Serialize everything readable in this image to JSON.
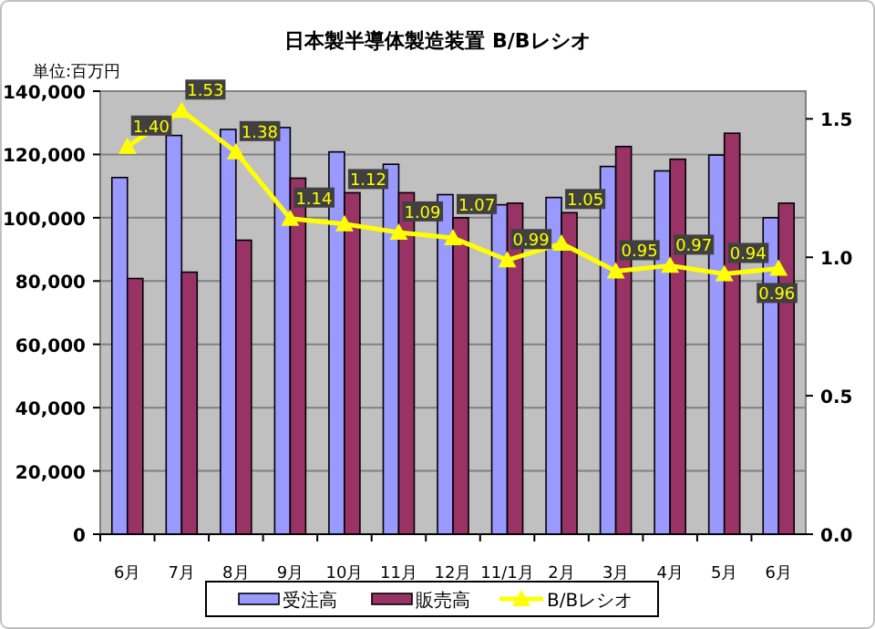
{
  "chart_data": {
    "type": "bar",
    "title": "日本製半導体製造装置 B/Bレシオ",
    "ylabel": "単位:百万円",
    "categories": [
      "6月",
      "7月",
      "8月",
      "9月",
      "10月",
      "11月",
      "12月",
      "11/1月",
      "2月",
      "3月",
      "4月",
      "5月",
      "6月"
    ],
    "series": [
      {
        "name": "受注高",
        "color": "#9999ff",
        "values": [
          112700,
          126000,
          127900,
          128500,
          120800,
          116900,
          107300,
          104100,
          106400,
          116200,
          114800,
          119800,
          100000
        ]
      },
      {
        "name": "販売高",
        "color": "#993366",
        "values": [
          80800,
          82800,
          92900,
          112500,
          107900,
          107900,
          100000,
          104600,
          101600,
          122500,
          118500,
          126700,
          104600
        ]
      },
      {
        "name": "B/Bレシオ",
        "type": "line",
        "axis": "y2",
        "color": "#ffff00",
        "marker": "triangle",
        "values": [
          1.4,
          1.53,
          1.38,
          1.14,
          1.12,
          1.09,
          1.07,
          0.99,
          1.05,
          0.95,
          0.97,
          0.94,
          0.96
        ],
        "value_labels": [
          "1.40",
          "1.53",
          "1.38",
          "1.14",
          "1.12",
          "1.09",
          "1.07",
          "0.99",
          "1.05",
          "0.95",
          "0.97",
          "0.94",
          "0.96"
        ]
      }
    ],
    "ylim": [
      0,
      140000
    ],
    "yticks": [
      {
        "value": 0,
        "label": "0"
      },
      {
        "value": 20000,
        "label": "20,000"
      },
      {
        "value": 40000,
        "label": "40,000"
      },
      {
        "value": 60000,
        "label": "60,000"
      },
      {
        "value": 80000,
        "label": "80,000"
      },
      {
        "value": 100000,
        "label": "100,000"
      },
      {
        "value": 120000,
        "label": "120,000"
      },
      {
        "value": 140000,
        "label": "140,000"
      }
    ],
    "y2lim": [
      0,
      1.6
    ],
    "y2ticks": [
      {
        "value": 0,
        "label": "0.0"
      },
      0.5,
      {
        "value": 1,
        "label": "1.0"
      },
      1.5
    ],
    "grid": "y",
    "legend": "bottom"
  }
}
